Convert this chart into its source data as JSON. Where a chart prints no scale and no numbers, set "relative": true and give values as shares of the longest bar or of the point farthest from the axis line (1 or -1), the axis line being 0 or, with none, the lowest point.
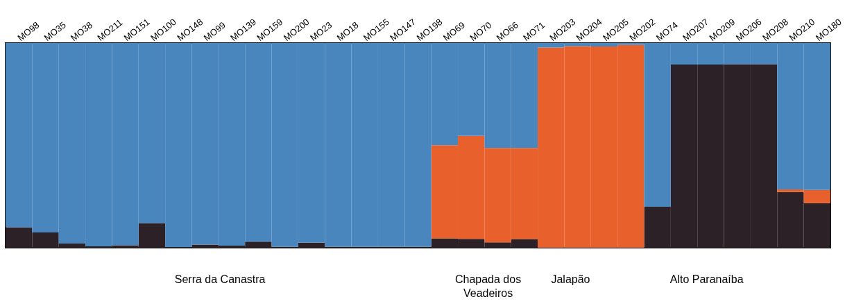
{
  "chart_data": {
    "type": "bar",
    "stacked": true,
    "relative": true,
    "tick_labels": "x",
    "categories": [
      "MO98",
      "MO35",
      "MO38",
      "MO211",
      "MO151",
      "MO100",
      "MO148",
      "MO99",
      "MO139",
      "MO159",
      "MO200",
      "MO23",
      "MO18",
      "MO155",
      "MO147",
      "MO198",
      "MO69",
      "MO70",
      "MO66",
      "MO71",
      "MO203",
      "MO204",
      "MO205",
      "MO202",
      "MO74",
      "MO207",
      "MO209",
      "MO206",
      "MO208",
      "MO210",
      "MO180"
    ],
    "series": [
      {
        "color": "#2b2126",
        "values": [
          0.1,
          0.075,
          0.02,
          0.007,
          0.012,
          0.12,
          0.003,
          0.015,
          0.01,
          0.03,
          0.005,
          0.025,
          0.005,
          0.005,
          0.005,
          0.005,
          0.046,
          0.043,
          0.026,
          0.042,
          0,
          0,
          0,
          0,
          0.2,
          0.895,
          0.895,
          0.897,
          0.897,
          0.272,
          0.218
        ]
      },
      {
        "color": "#e8602c",
        "values": [
          0,
          0,
          0,
          0,
          0,
          0,
          0,
          0,
          0,
          0,
          0,
          0,
          0,
          0,
          0,
          0,
          0.455,
          0.504,
          0.461,
          0.445,
          0.978,
          0.985,
          0.983,
          0.991,
          0,
          0,
          0,
          0,
          0,
          0.013,
          0.064
        ]
      },
      {
        "color": "#4a86be",
        "values": [
          0.9,
          0.925,
          0.98,
          0.993,
          0.988,
          0.88,
          0.997,
          0.985,
          0.99,
          0.97,
          0.995,
          0.975,
          0.995,
          0.995,
          0.995,
          0.995,
          0.499,
          0.453,
          0.513,
          0.513,
          0.022,
          0.015,
          0.017,
          0.009,
          0.8,
          0.105,
          0.105,
          0.103,
          0.103,
          0.715,
          0.718
        ]
      }
    ],
    "annotations": [
      "Serra da Canastra",
      "Chapada dos\nVeadeiros",
      "Jalapão",
      "Alto Paranaíba"
    ]
  }
}
